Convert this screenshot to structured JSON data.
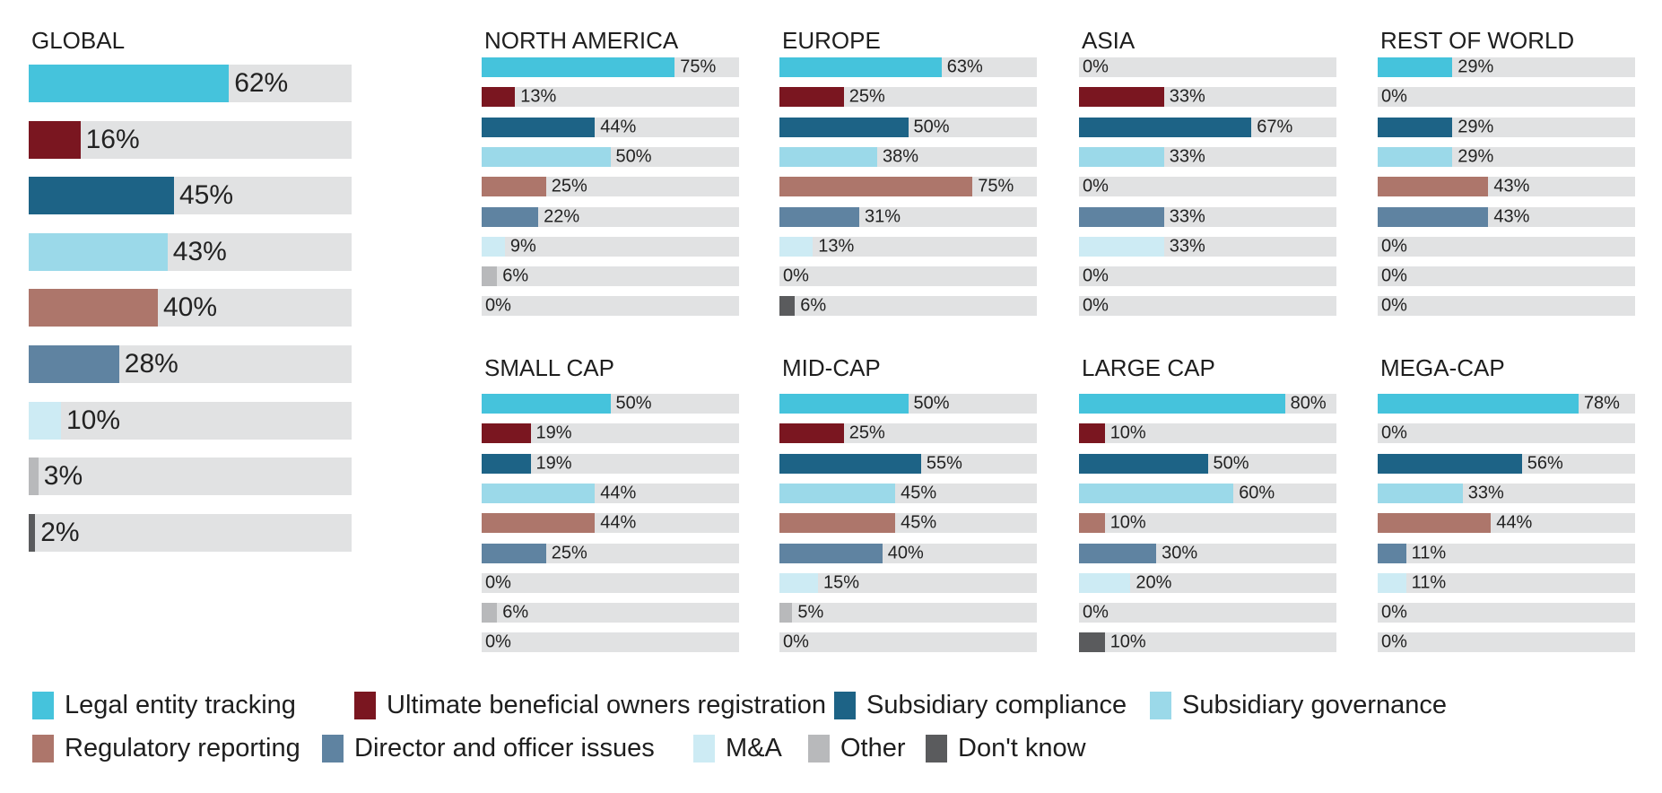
{
  "colors": {
    "Legal entity tracking": "#45c3dc",
    "Ultimate beneficial owners registration": "#7a1620",
    "Subsidiary compliance": "#1d6386",
    "Subsidiary governance": "#9bd9e9",
    "Regulatory reporting": "#ad766b",
    "Director and officer issues": "#5f83a1",
    "M&A": "#cdebf4",
    "Other": "#b8b9bb",
    "Don't know": "#5a5b5d",
    "track": "#e1e2e3"
  },
  "legend": {
    "items": [
      "Legal entity tracking",
      "Ultimate beneficial owners registration",
      "Subsidiary compliance",
      "Subsidiary governance",
      "Regulatory reporting",
      "Director and officer issues",
      "M&A",
      "Other",
      "Don't know"
    ]
  },
  "chart_data": [
    {
      "type": "bar",
      "title": "GLOBAL",
      "categories": [
        "Legal entity tracking",
        "Ultimate beneficial owners registration",
        "Subsidiary compliance",
        "Subsidiary governance",
        "Regulatory reporting",
        "Director and officer issues",
        "M&A",
        "Other",
        "Don't know"
      ],
      "values": [
        62,
        16,
        45,
        43,
        40,
        28,
        10,
        3,
        2
      ],
      "labels": [
        "62%",
        "16%",
        "45%",
        "43%",
        "40%",
        "28%",
        "10%",
        "3%",
        "2%"
      ],
      "xlim": [
        0,
        100
      ]
    },
    {
      "type": "bar",
      "title": "NORTH AMERICA",
      "categories": [
        "Legal entity tracking",
        "Ultimate beneficial owners registration",
        "Subsidiary compliance",
        "Subsidiary governance",
        "Regulatory reporting",
        "Director and officer issues",
        "M&A",
        "Other",
        "Don't know"
      ],
      "values": [
        75,
        13,
        44,
        50,
        25,
        22,
        9,
        6,
        0
      ],
      "labels": [
        "75%",
        "13%",
        "44%",
        "50%",
        "25%",
        "22%",
        "9%",
        "6%",
        "0%"
      ],
      "xlim": [
        0,
        100
      ]
    },
    {
      "type": "bar",
      "title": "EUROPE",
      "categories": [
        "Legal entity tracking",
        "Ultimate beneficial owners registration",
        "Subsidiary compliance",
        "Subsidiary governance",
        "Regulatory reporting",
        "Director and officer issues",
        "M&A",
        "Other",
        "Don't know"
      ],
      "values": [
        63,
        25,
        50,
        38,
        75,
        31,
        13,
        0,
        6
      ],
      "labels": [
        "63%",
        "25%",
        "50%",
        "38%",
        "75%",
        "31%",
        "13%",
        "0%",
        "6%"
      ],
      "xlim": [
        0,
        100
      ]
    },
    {
      "type": "bar",
      "title": "ASIA",
      "categories": [
        "Legal entity tracking",
        "Ultimate beneficial owners registration",
        "Subsidiary compliance",
        "Subsidiary governance",
        "Regulatory reporting",
        "Director and officer issues",
        "M&A",
        "Other",
        "Don't know"
      ],
      "values": [
        0,
        33,
        67,
        33,
        0,
        33,
        33,
        0,
        0
      ],
      "labels": [
        "0%",
        "33%",
        "67%",
        "33%",
        "0%",
        "33%",
        "33%",
        "0%",
        "0%"
      ],
      "xlim": [
        0,
        100
      ]
    },
    {
      "type": "bar",
      "title": "REST OF WORLD",
      "categories": [
        "Legal entity tracking",
        "Ultimate beneficial owners registration",
        "Subsidiary compliance",
        "Subsidiary governance",
        "Regulatory reporting",
        "Director and officer issues",
        "M&A",
        "Other",
        "Don't know"
      ],
      "values": [
        29,
        0,
        29,
        29,
        43,
        43,
        0,
        0,
        0
      ],
      "labels": [
        "29%",
        "0%",
        "29%",
        "29%",
        "43%",
        "43%",
        "0%",
        "0%",
        "0%"
      ],
      "xlim": [
        0,
        100
      ]
    },
    {
      "type": "bar",
      "title": "SMALL CAP",
      "categories": [
        "Legal entity tracking",
        "Ultimate beneficial owners registration",
        "Subsidiary compliance",
        "Subsidiary governance",
        "Regulatory reporting",
        "Director and officer issues",
        "M&A",
        "Other",
        "Don't know"
      ],
      "values": [
        50,
        19,
        19,
        44,
        44,
        25,
        0,
        6,
        0
      ],
      "labels": [
        "50%",
        "19%",
        "19%",
        "44%",
        "44%",
        "25%",
        "0%",
        "6%",
        "0%"
      ],
      "xlim": [
        0,
        100
      ]
    },
    {
      "type": "bar",
      "title": "MID-CAP",
      "categories": [
        "Legal entity tracking",
        "Ultimate beneficial owners registration",
        "Subsidiary compliance",
        "Subsidiary governance",
        "Regulatory reporting",
        "Director and officer issues",
        "M&A",
        "Other",
        "Don't know"
      ],
      "values": [
        50,
        25,
        55,
        45,
        45,
        40,
        15,
        5,
        0
      ],
      "labels": [
        "50%",
        "25%",
        "55%",
        "45%",
        "45%",
        "40%",
        "15%",
        "5%",
        "0%"
      ],
      "xlim": [
        0,
        100
      ]
    },
    {
      "type": "bar",
      "title": "LARGE CAP",
      "categories": [
        "Legal entity tracking",
        "Ultimate beneficial owners registration",
        "Subsidiary compliance",
        "Subsidiary governance",
        "Regulatory reporting",
        "Director and officer issues",
        "M&A",
        "Other",
        "Don't know"
      ],
      "values": [
        80,
        10,
        50,
        60,
        10,
        30,
        20,
        0,
        10
      ],
      "labels": [
        "80%",
        "10%",
        "50%",
        "60%",
        "10%",
        "30%",
        "20%",
        "0%",
        "10%"
      ],
      "xlim": [
        0,
        100
      ]
    },
    {
      "type": "bar",
      "title": "MEGA-CAP",
      "categories": [
        "Legal entity tracking",
        "Ultimate beneficial owners registration",
        "Subsidiary compliance",
        "Subsidiary governance",
        "Regulatory reporting",
        "Director and officer issues",
        "M&A",
        "Other",
        "Don't know"
      ],
      "values": [
        78,
        0,
        56,
        33,
        44,
        11,
        11,
        0,
        0
      ],
      "labels": [
        "78%",
        "0%",
        "56%",
        "33%",
        "44%",
        "11%",
        "11%",
        "0%",
        "0%"
      ],
      "xlim": [
        0,
        100
      ]
    }
  ]
}
